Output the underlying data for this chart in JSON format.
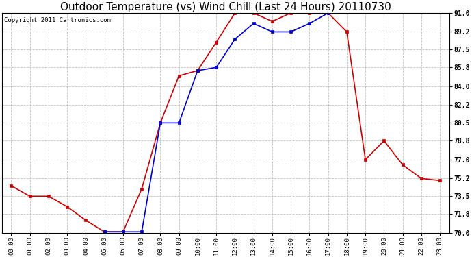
{
  "title": "Outdoor Temperature (vs) Wind Chill (Last 24 Hours) 20110730",
  "copyright": "Copyright 2011 Cartronics.com",
  "x_labels": [
    "00:00",
    "01:00",
    "02:00",
    "03:00",
    "04:00",
    "05:00",
    "06:00",
    "07:00",
    "08:00",
    "09:00",
    "10:00",
    "11:00",
    "12:00",
    "13:00",
    "14:00",
    "15:00",
    "16:00",
    "17:00",
    "18:00",
    "19:00",
    "20:00",
    "21:00",
    "22:00",
    "23:00"
  ],
  "temp_red": [
    74.5,
    73.5,
    73.5,
    72.5,
    71.2,
    70.1,
    70.1,
    74.2,
    80.5,
    85.0,
    85.5,
    88.2,
    91.0,
    91.0,
    90.2,
    91.0,
    91.0,
    91.0,
    89.2,
    77.0,
    78.8,
    76.5,
    75.2,
    75.0
  ],
  "wind_chill_blue": [
    null,
    null,
    null,
    null,
    null,
    70.1,
    70.1,
    70.1,
    80.5,
    80.5,
    85.5,
    85.8,
    88.5,
    90.0,
    89.2,
    89.2,
    90.0,
    91.0,
    null,
    null,
    null,
    null,
    null,
    null
  ],
  "ylim": [
    70.0,
    91.0
  ],
  "yticks": [
    70.0,
    71.8,
    73.5,
    75.2,
    77.0,
    78.8,
    80.5,
    82.2,
    84.0,
    85.8,
    87.5,
    89.2,
    91.0
  ],
  "red_color": "#cc0000",
  "blue_color": "#0000cc",
  "bg_color": "#ffffff",
  "grid_color": "#bbbbbb",
  "title_fontsize": 11,
  "copyright_fontsize": 6.5
}
